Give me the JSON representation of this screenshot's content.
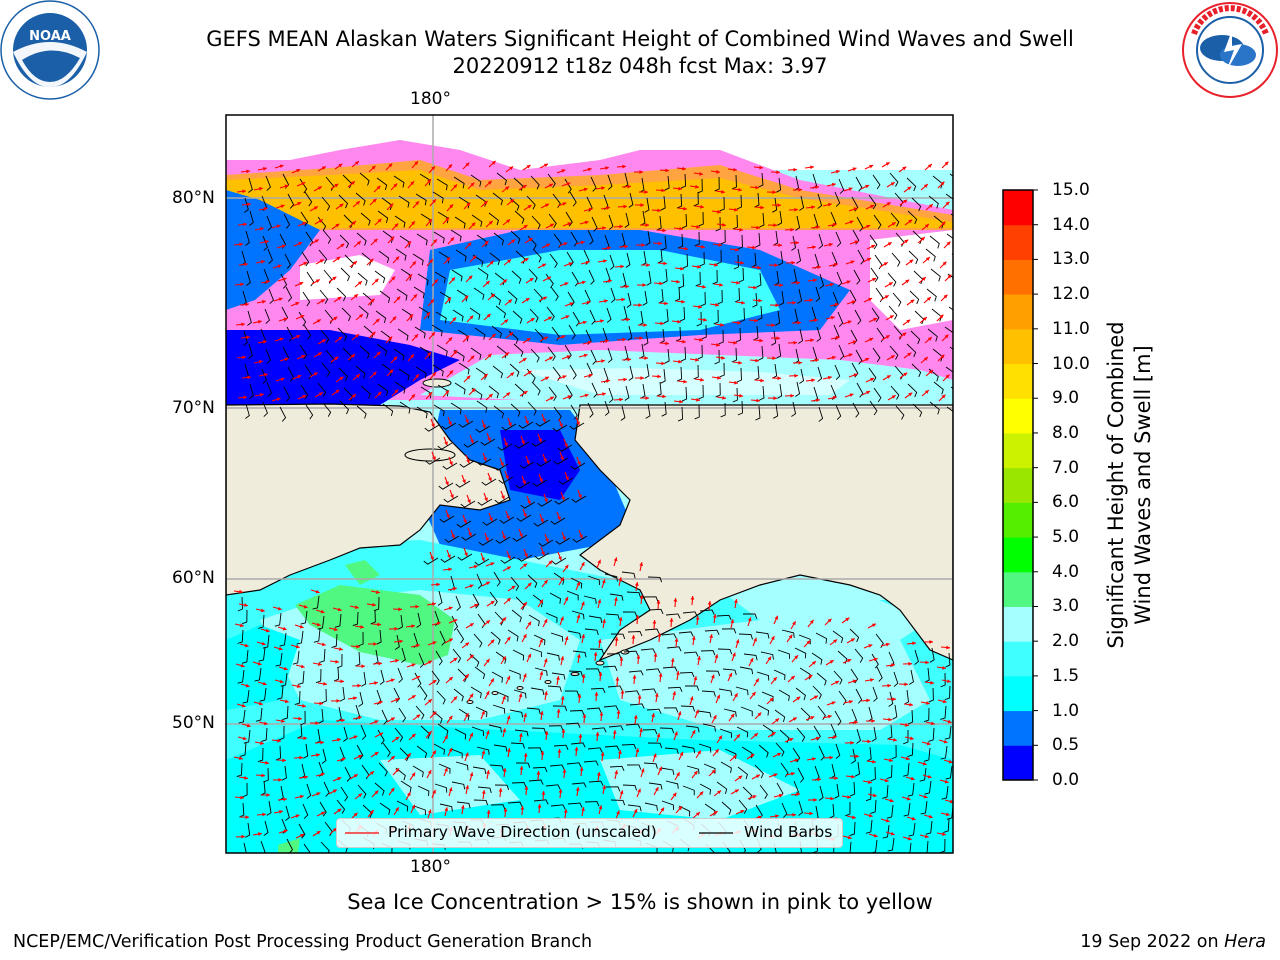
{
  "header": {
    "title_line1": "GEFS MEAN Alaskan Waters Significant Height of Combined Wind Waves and Swell",
    "title_line2": "20220912 t18z 048h fcst   Max: 3.97"
  },
  "logos": {
    "noaa_text": "NOAA",
    "noaa_ring_text": "NATIONAL OCEANIC AND ATMOSPHERIC ADMINISTRATION · U.S. DEPARTMENT OF COMMERCE",
    "nws_ring_text": "NATIONAL WEATHER SERVICE",
    "nws_color": "#e8202a",
    "noaa_color": "#1a5fa8"
  },
  "map": {
    "lon_label_top": "180°",
    "lon_label_bottom": "180°",
    "lat_labels": [
      "80°N",
      "70°N",
      "60°N",
      "50°N"
    ],
    "land_color": "#efecdc",
    "legend": {
      "wave_label": "Primary Wave Direction (unscaled)",
      "barb_label": "Wind Barbs",
      "wave_color": "#ff0000",
      "barb_color": "#000000"
    }
  },
  "colorbar": {
    "title_line1": "Significant Height of Combined",
    "title_line2": "Wind Waves and Swell [m]",
    "ticks": [
      "0.0",
      "0.5",
      "1.0",
      "1.5",
      "2.0",
      "3.0",
      "4.0",
      "5.0",
      "6.0",
      "7.0",
      "8.0",
      "9.0",
      "10.0",
      "11.0",
      "12.0",
      "13.0",
      "14.0",
      "15.0"
    ],
    "colors": [
      "#0000ff",
      "#0073ff",
      "#00ffff",
      "#40ffff",
      "#a6ffff",
      "#50f780",
      "#00ff00",
      "#55ee00",
      "#9ae600",
      "#ccf200",
      "#ffff00",
      "#ffe000",
      "#ffc000",
      "#ff9f00",
      "#ff7000",
      "#ff4000",
      "#ff0000"
    ]
  },
  "notes": {
    "sea_ice": "Sea Ice Concentration > 15% is shown in pink to yellow"
  },
  "footer": {
    "left": "NCEP/EMC/Verification Post Processing Product Generation Branch",
    "right_prefix": "19 Sep 2022 on ",
    "right_host": "Hera"
  }
}
